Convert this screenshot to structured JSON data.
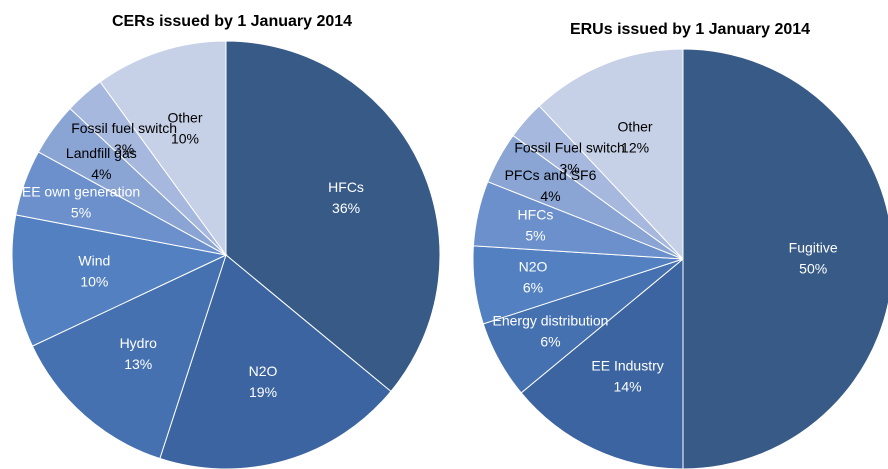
{
  "chart_data": [
    {
      "type": "pie",
      "title": "CERs issued by 1 January 2014",
      "categories": [
        "HFCs",
        "N2O",
        "Hydro",
        "Wind",
        "EE own generation",
        "Landfill gas",
        "Fossil fuel switch",
        "Other"
      ],
      "values": [
        36,
        19,
        13,
        10,
        5,
        4,
        3,
        10
      ],
      "value_labels": [
        "36%",
        "19%",
        "13%",
        "10%",
        "5%",
        "4%",
        "3%",
        "10%"
      ],
      "colors": [
        "#375a87",
        "#3b64a0",
        "#4671b0",
        "#5280c0",
        "#6b90cc",
        "#8aa4d4",
        "#a6b8dd",
        "#c6d0e6"
      ]
    },
    {
      "type": "pie",
      "title": "ERUs issued by 1 January 2014",
      "categories": [
        "Fugitive",
        "EE Industry",
        "Energy distribution",
        "N2O",
        "HFCs",
        "PFCs and SF6",
        "Fossil Fuel switch",
        "Other"
      ],
      "values": [
        50,
        14,
        6,
        6,
        5,
        4,
        3,
        12
      ],
      "value_labels": [
        "50%",
        "14%",
        "6%",
        "6%",
        "5%",
        "4%",
        "3%",
        "12%"
      ],
      "colors": [
        "#375a87",
        "#3b64a0",
        "#4671b0",
        "#5280c0",
        "#6b90cc",
        "#8aa4d4",
        "#a6b8dd",
        "#c6d0e6"
      ]
    }
  ]
}
